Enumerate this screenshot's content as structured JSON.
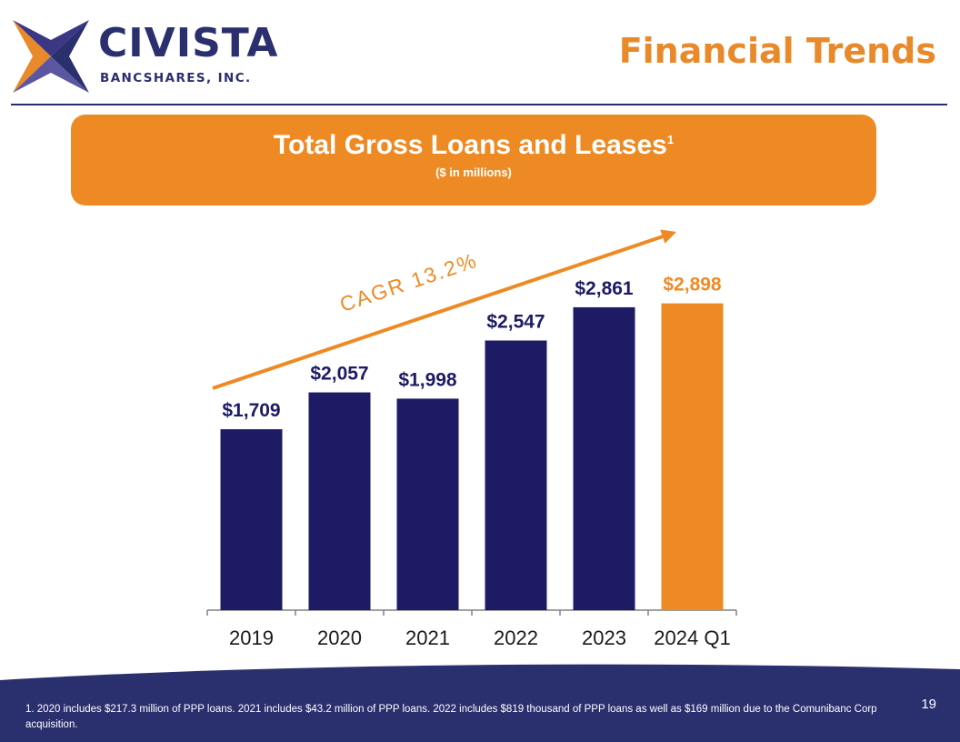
{
  "logo": {
    "name": "CIVISTA",
    "subtitle": "BANCSHARES, INC."
  },
  "slide_title": "Financial Trends",
  "banner": {
    "title": "Total Gross Loans and Leases",
    "superscript": "1",
    "subtitle": "($ in millions)"
  },
  "chart_data": {
    "type": "bar",
    "categories": [
      "2019",
      "2020",
      "2021",
      "2022",
      "2023",
      "2024 Q1"
    ],
    "values": [
      1709,
      2057,
      1998,
      2547,
      2861,
      2898
    ],
    "data_labels": [
      "$1,709",
      "$2,057",
      "$1,998",
      "$2,547",
      "$2,861",
      "$2,898"
    ],
    "bar_colors": [
      "#1d1b64",
      "#1d1b64",
      "#1d1b64",
      "#1d1b64",
      "#1d1b64",
      "#ee8a24"
    ],
    "annotation": "CAGR 13.2%",
    "annotation_color": "#ee8a24",
    "ylim": [
      0,
      3350
    ],
    "title": "",
    "xlabel": "",
    "ylabel": "",
    "grid": false
  },
  "footnote": "1.  2020 includes $217.3 million of PPP loans. 2021 includes $43.2 million of PPP loans. 2022 includes $819 thousand of PPP loans as well as $169 million due to the Comunibanc Corp acquisition.",
  "page_number": "19",
  "colors": {
    "navy": "#1d1b64",
    "orange": "#ee8a24",
    "header_navy": "#2a2f6e"
  }
}
